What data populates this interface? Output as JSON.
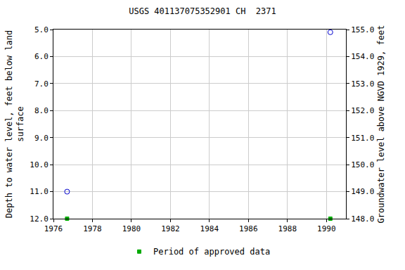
{
  "chart_data": {
    "type": "scatter",
    "title": "USGS 401137075352901 CH  2371",
    "x_label": null,
    "y_label": "Depth to water level, feet below land\nsurface",
    "y2_label": "Groundwater level above NGVD 1929, feet",
    "xlim": [
      1976,
      1991
    ],
    "xticks": [
      1976,
      1978,
      1980,
      1982,
      1984,
      1986,
      1988,
      1990
    ],
    "ylim": [
      12,
      5
    ],
    "yticks": [
      {
        "value": 5,
        "label": "5.0"
      },
      {
        "value": 6,
        "label": "6.0"
      },
      {
        "value": 7,
        "label": "7.0"
      },
      {
        "value": 8,
        "label": "8.0"
      },
      {
        "value": 9,
        "label": "9.0"
      },
      {
        "value": 10,
        "label": "10.0"
      },
      {
        "value": 11,
        "label": "11.0"
      },
      {
        "value": 12,
        "label": "12.0"
      }
    ],
    "y2lim": [
      148,
      155
    ],
    "y2ticks": [
      {
        "value": 148,
        "label": "148.0"
      },
      {
        "value": 149,
        "label": "149.0"
      },
      {
        "value": 150,
        "label": "150.0"
      },
      {
        "value": 151,
        "label": "151.0"
      },
      {
        "value": 152,
        "label": "152.0"
      },
      {
        "value": 153,
        "label": "153.0"
      },
      {
        "value": 154,
        "label": "154.0"
      },
      {
        "value": 155,
        "label": "155.0"
      }
    ],
    "grid": true,
    "legend": "bottom",
    "series": [
      {
        "color": "#0000cc",
        "marker": "circle-open",
        "x": [
          1976.7,
          1990.2
        ],
        "values": [
          11.0,
          5.1
        ]
      },
      {
        "name": "Period of approved data",
        "color": "#00aa00",
        "marker": "square",
        "x": [
          1976.7,
          1990.2
        ],
        "values": [
          12,
          12
        ]
      }
    ]
  }
}
